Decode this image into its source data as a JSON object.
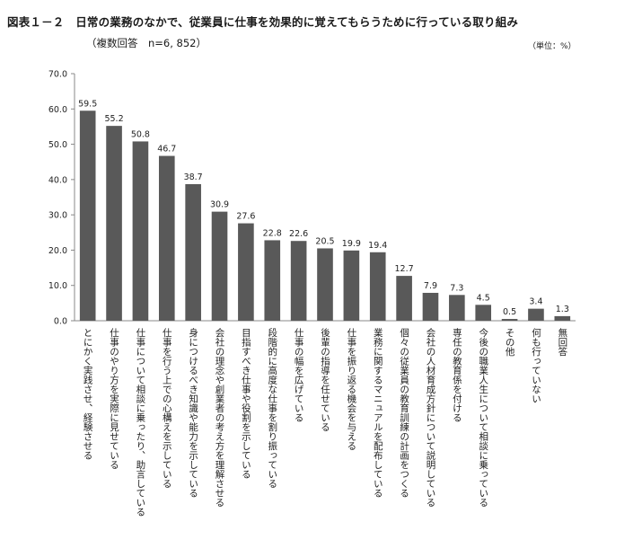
{
  "header": {
    "title": "図表１－２　日常の業務のなかで、従業員に仕事を効果的に覚えてもらうために行っている取り組み",
    "subtitle": "（複数回答　n=6, 852）",
    "unit": "（単位：%）"
  },
  "chart_data": {
    "type": "bar",
    "title": "日常の業務のなかで、従業員に仕事を効果的に覚えてもらうために行っている取り組み",
    "ylim": [
      0,
      70
    ],
    "yticks": [
      "0.0",
      "10.0",
      "20.0",
      "30.0",
      "40.0",
      "50.0",
      "60.0",
      "70.0"
    ],
    "bar_color": "#595959",
    "categories": [
      "とにかく実践させ、経験させる",
      "仕事のやり方を実際に見せている",
      "仕事について相談に乗ったり、助言している",
      "仕事を行う上での心構えを示している",
      "身につけるべき知識や能力を示している",
      "会社の理念や創業者の考え方を理解させる",
      "目指すべき仕事や役割を示している",
      "段階的に高度な仕事を割り振っている",
      "仕事の幅を広げている",
      "後輩の指導を任せている",
      "仕事を振り返る機会を与える",
      "業務に関するマニュアルを配布している",
      "個々の従業員の教育訓練の計画をつくる",
      "会社の人材育成方針について説明している",
      "専任の教育係を付ける",
      "今後の職業人生について相談に乗っている",
      "その他",
      "何も行っていない",
      "無回答"
    ],
    "values": [
      59.5,
      55.2,
      50.8,
      46.7,
      38.7,
      30.9,
      27.6,
      22.8,
      22.6,
      20.5,
      19.9,
      19.4,
      12.7,
      7.9,
      7.3,
      4.5,
      0.5,
      3.4,
      1.3
    ],
    "value_labels": [
      "59.5",
      "55.2",
      "50.8",
      "46.7",
      "38.7",
      "30.9",
      "27.6",
      "22.8",
      "22.6",
      "20.5",
      "19.9",
      "19.4",
      "12.7",
      "7.9",
      "7.3",
      "4.5",
      "0.5",
      "3.4",
      "1.3"
    ]
  }
}
